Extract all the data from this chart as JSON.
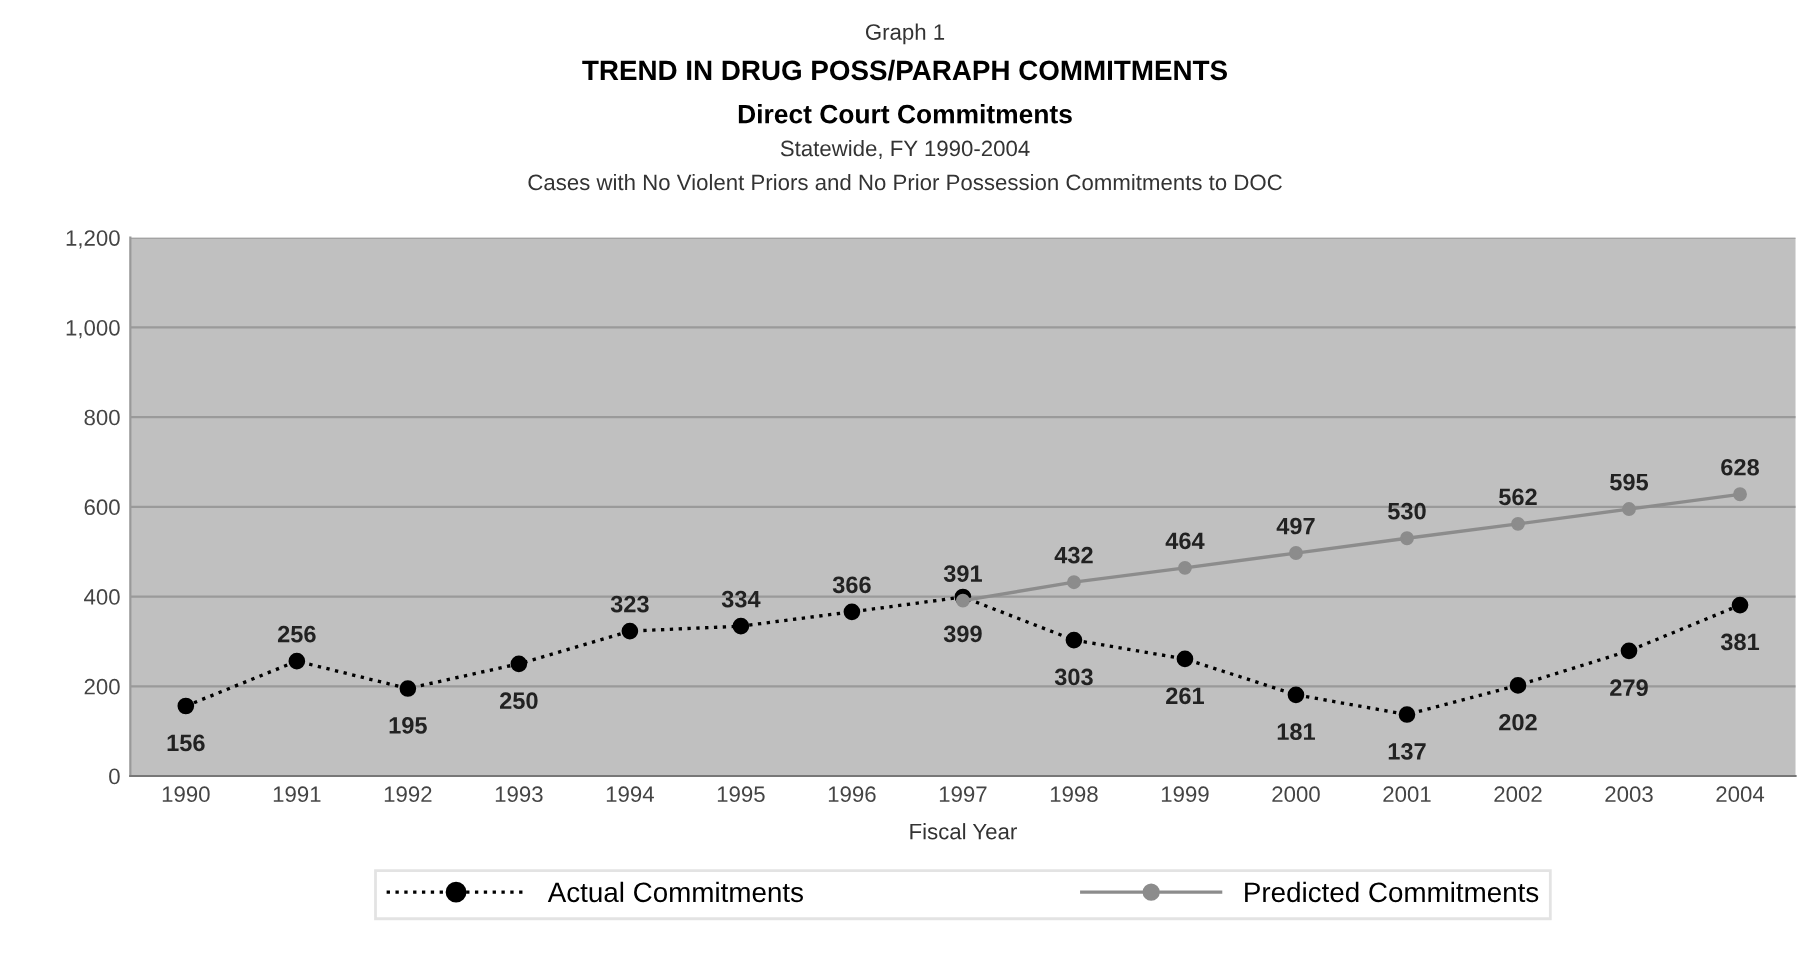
{
  "chart_data": {
    "type": "line",
    "title": "TREND IN DRUG POSS/PARAPH COMMITMENTS",
    "subtitle": "Direct Court Commitments",
    "annotations": [
      "Graph 1",
      "Statewide, FY 1990-2004",
      "Cases with No Violent Priors and No Prior Possession Commitments to DOC"
    ],
    "xlabel": "Fiscal Year",
    "categories": [
      "1990",
      "1991",
      "1992",
      "1993",
      "1994",
      "1995",
      "1996",
      "1997",
      "1998",
      "1999",
      "2000",
      "2001",
      "2002",
      "2003",
      "2004"
    ],
    "series": [
      {
        "name": "Actual Commitments",
        "color": "#000000",
        "marker": "circle",
        "line_style": "dotted",
        "values": [
          156,
          256,
          195,
          250,
          323,
          334,
          366,
          399,
          303,
          261,
          181,
          137,
          202,
          279,
          381
        ]
      },
      {
        "name": "Predicted Commitments",
        "color": "#8c8c8c",
        "marker": "circle",
        "line_style": "solid",
        "values": [
          null,
          null,
          null,
          null,
          null,
          null,
          null,
          391,
          432,
          464,
          497,
          530,
          562,
          595,
          628
        ]
      }
    ],
    "ylim": [
      0,
      1200
    ],
    "yticks": [
      0,
      200,
      400,
      600,
      800,
      {
        "value": 1000,
        "label": "1,000"
      },
      {
        "value": 1200,
        "label": "1,200"
      }
    ],
    "grid": "y",
    "legend": "bottom",
    "data_labels": true
  }
}
